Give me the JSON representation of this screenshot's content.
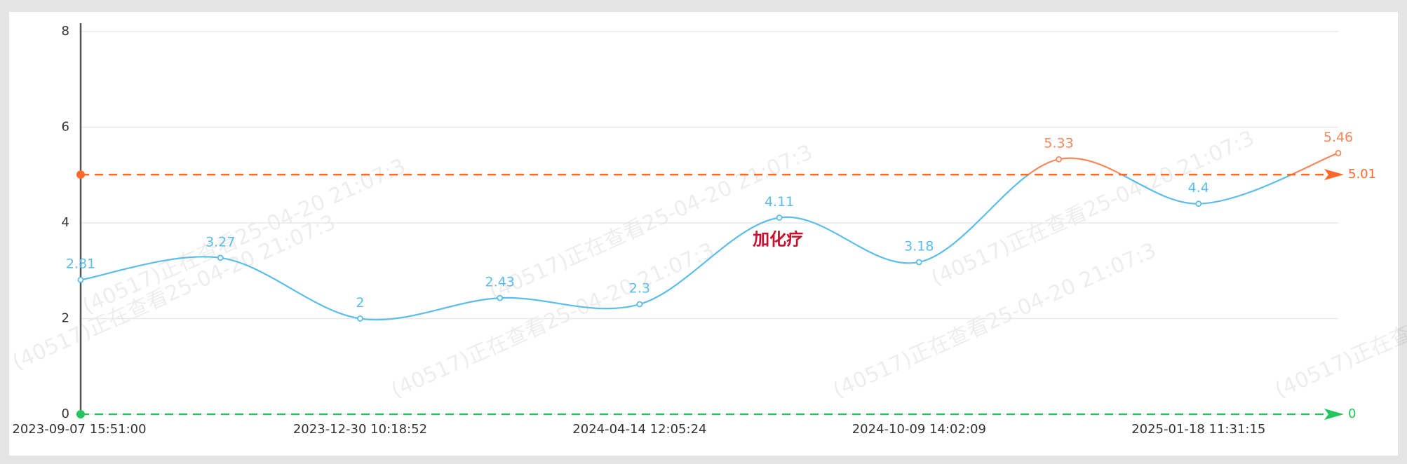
{
  "chart_data": {
    "type": "line",
    "categories": [
      "2023-09-07 15:51:00",
      null,
      "2023-12-30 10:18:52",
      null,
      "2024-04-14 12:05:24",
      null,
      "2024-10-09 14:02:09",
      null,
      "2025-01-18 11:31:15",
      null
    ],
    "values": [
      2.81,
      3.27,
      2,
      2.43,
      2.3,
      4.11,
      3.18,
      5.33,
      4.4,
      5.46
    ],
    "color": "#5cbdea",
    "above_color": "#f7885c",
    "ylim": [
      0,
      8
    ],
    "yticks": [
      0,
      2,
      4,
      6,
      8
    ],
    "grid": true,
    "smooth": true,
    "mark_lines": [
      {
        "value": 5.01,
        "color": "#ff6a2b"
      },
      {
        "value": 0,
        "color": "#22c55e"
      }
    ],
    "annotations": [
      "加化疗"
    ],
    "watermark": "(40517)正在查看25-04-20 21:07:3"
  }
}
